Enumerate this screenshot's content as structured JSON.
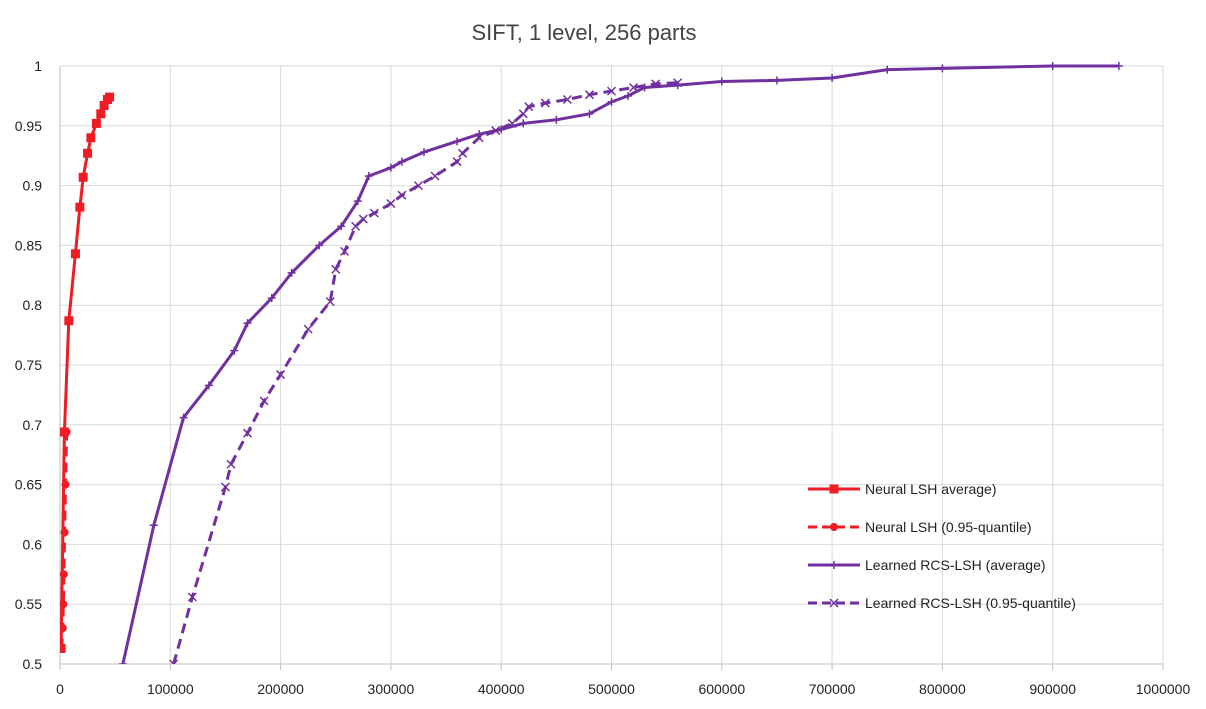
{
  "chart_data": {
    "type": "line",
    "title": "SIFT, 1 level, 256 parts",
    "xlabel": "",
    "ylabel": "",
    "xlim": [
      0,
      1000000
    ],
    "ylim": [
      0.5,
      1
    ],
    "x_ticks": [
      0,
      100000,
      200000,
      300000,
      400000,
      500000,
      600000,
      700000,
      800000,
      900000,
      1000000
    ],
    "x_tick_labels": [
      "0",
      "100000",
      "200000",
      "300000",
      "400000",
      "500000",
      "600000",
      "700000",
      "800000",
      "900000",
      "1000000"
    ],
    "y_ticks": [
      0.5,
      0.55,
      0.6,
      0.65,
      0.7,
      0.75,
      0.8,
      0.85,
      0.9,
      0.95,
      1
    ],
    "y_tick_labels": [
      "0.5",
      "0.55",
      "0.6",
      "0.65",
      "0.7",
      "0.75",
      "0.8",
      "0.85",
      "0.9",
      "0.95",
      "1"
    ],
    "grid": true,
    "legend_position": "bottom-right",
    "series": [
      {
        "name": "Neural LSH average)",
        "color": "#ee1c25",
        "dash": "solid",
        "marker": "square",
        "points": [
          [
            1000,
            0.513
          ],
          [
            4000,
            0.694
          ],
          [
            8000,
            0.787
          ],
          [
            14000,
            0.843
          ],
          [
            18000,
            0.882
          ],
          [
            21000,
            0.907
          ],
          [
            25000,
            0.927
          ],
          [
            28000,
            0.94
          ],
          [
            33000,
            0.952
          ],
          [
            37000,
            0.96
          ],
          [
            40000,
            0.967
          ],
          [
            43000,
            0.972
          ],
          [
            45000,
            0.974
          ]
        ]
      },
      {
        "name": "Neural LSH (0.95-quantile)",
        "color": "#ee1c25",
        "dash": "dashed",
        "marker": "circle",
        "points": [
          [
            1500,
            0.513
          ],
          [
            2500,
            0.53
          ],
          [
            3000,
            0.55
          ],
          [
            3500,
            0.575
          ],
          [
            4200,
            0.61
          ],
          [
            5000,
            0.65
          ],
          [
            6000,
            0.694
          ]
        ]
      },
      {
        "name": "Learned RCS-LSH (average)",
        "color": "#7030a0",
        "dash": "solid",
        "marker": "plus",
        "points": [
          [
            57000,
            0.5
          ],
          [
            85000,
            0.616
          ],
          [
            112000,
            0.706
          ],
          [
            135000,
            0.733
          ],
          [
            158000,
            0.762
          ],
          [
            170000,
            0.785
          ],
          [
            192000,
            0.806
          ],
          [
            210000,
            0.827
          ],
          [
            235000,
            0.85
          ],
          [
            255000,
            0.866
          ],
          [
            270000,
            0.887
          ],
          [
            280000,
            0.908
          ],
          [
            300000,
            0.915
          ],
          [
            310000,
            0.92
          ],
          [
            330000,
            0.928
          ],
          [
            360000,
            0.937
          ],
          [
            380000,
            0.943
          ],
          [
            400000,
            0.947
          ],
          [
            420000,
            0.952
          ],
          [
            450000,
            0.955
          ],
          [
            480000,
            0.96
          ],
          [
            500000,
            0.97
          ],
          [
            515000,
            0.975
          ],
          [
            530000,
            0.982
          ],
          [
            560000,
            0.984
          ],
          [
            600000,
            0.987
          ],
          [
            650000,
            0.988
          ],
          [
            700000,
            0.99
          ],
          [
            750000,
            0.997
          ],
          [
            800000,
            0.998
          ],
          [
            900000,
            1.0
          ],
          [
            960000,
            1.0
          ]
        ]
      },
      {
        "name": "Learned RCS-LSH (0.95-quantile)",
        "color": "#7030a0",
        "dash": "dashed",
        "marker": "x",
        "points": [
          [
            103000,
            0.5
          ],
          [
            120000,
            0.556
          ],
          [
            150000,
            0.648
          ],
          [
            155000,
            0.667
          ],
          [
            170000,
            0.693
          ],
          [
            185000,
            0.72
          ],
          [
            200000,
            0.742
          ],
          [
            225000,
            0.78
          ],
          [
            245000,
            0.803
          ],
          [
            250000,
            0.83
          ],
          [
            258000,
            0.845
          ],
          [
            268000,
            0.866
          ],
          [
            275000,
            0.872
          ],
          [
            285000,
            0.877
          ],
          [
            300000,
            0.885
          ],
          [
            310000,
            0.892
          ],
          [
            325000,
            0.9
          ],
          [
            340000,
            0.908
          ],
          [
            360000,
            0.92
          ],
          [
            365000,
            0.927
          ],
          [
            380000,
            0.94
          ],
          [
            395000,
            0.946
          ],
          [
            410000,
            0.952
          ],
          [
            420000,
            0.96
          ],
          [
            425000,
            0.966
          ],
          [
            440000,
            0.969
          ],
          [
            460000,
            0.972
          ],
          [
            480000,
            0.976
          ],
          [
            500000,
            0.979
          ],
          [
            520000,
            0.982
          ],
          [
            540000,
            0.985
          ],
          [
            560000,
            0.986
          ]
        ]
      }
    ]
  }
}
